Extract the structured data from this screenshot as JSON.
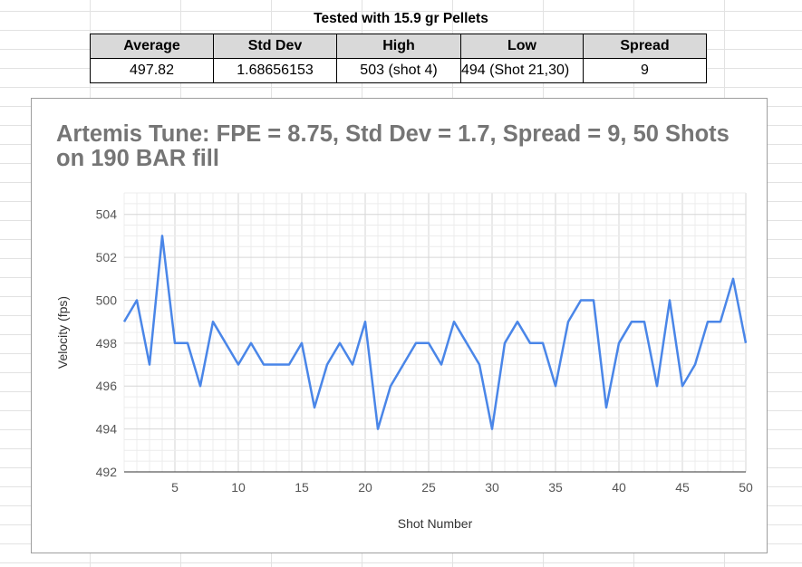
{
  "caption": "Tested with 15.9 gr Pellets",
  "table": {
    "headers": [
      "Average",
      "Std Dev",
      "High",
      "Low",
      "Spread"
    ],
    "row": [
      "497.82",
      "1.68656153",
      "503 (shot 4)",
      "494 (Shot 21,30)",
      "9"
    ]
  },
  "colors": {
    "line": "#4a86e8",
    "grid": "#e0e0e0",
    "axis": "#333333"
  },
  "chart_data": {
    "type": "line",
    "title_lines": [
      "Artemis Tune: FPE = 8.75, Std Dev = 1.7, Spread = 9,  50 Shots",
      "on 190 BAR fill"
    ],
    "xlabel": "Shot Number",
    "ylabel": "Velocity (fps)",
    "xlim": [
      1,
      50
    ],
    "ylim": [
      492,
      505
    ],
    "xticks": [
      5,
      10,
      15,
      20,
      25,
      30,
      35,
      40,
      45,
      50
    ],
    "yticks": [
      492,
      494,
      496,
      498,
      500,
      502,
      504
    ],
    "grid": true,
    "series": [
      {
        "x": [
          1,
          2,
          3,
          4,
          5,
          6,
          7,
          8,
          9,
          10,
          11,
          12,
          13,
          14,
          15,
          16,
          17,
          18,
          19,
          20,
          21,
          22,
          23,
          24,
          25,
          26,
          27,
          28,
          29,
          30,
          31,
          32,
          33,
          34,
          35,
          36,
          37,
          38,
          39,
          40,
          41,
          42,
          43,
          44,
          45,
          46,
          47,
          48,
          49,
          50
        ],
        "values": [
          499,
          500,
          497,
          503,
          498,
          498,
          496,
          499,
          498,
          497,
          498,
          497,
          497,
          497,
          498,
          495,
          497,
          498,
          497,
          499,
          494,
          496,
          497,
          498,
          498,
          497,
          499,
          498,
          497,
          494,
          498,
          499,
          498,
          498,
          496,
          499,
          500,
          500,
          495,
          498,
          499,
          499,
          496,
          500,
          496,
          497,
          499,
          499,
          501,
          498
        ]
      }
    ]
  }
}
